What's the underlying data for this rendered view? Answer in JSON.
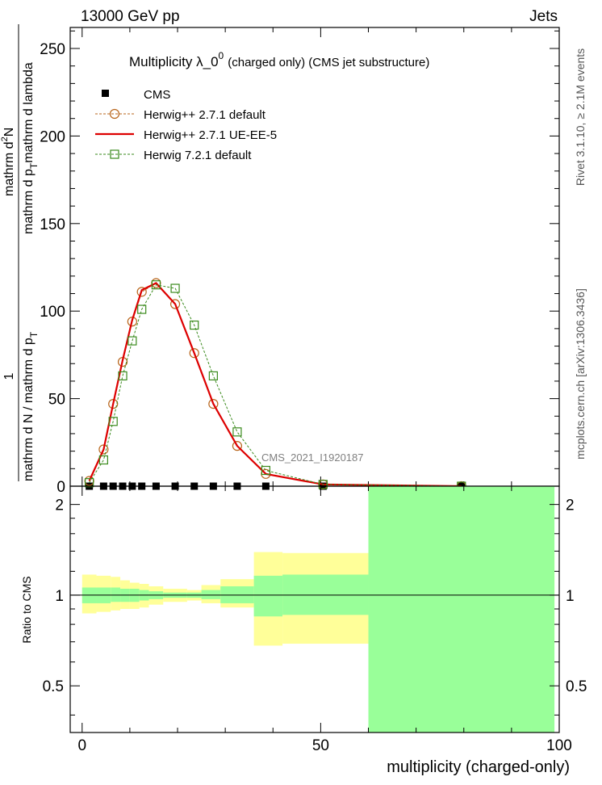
{
  "header": {
    "left": "13000 GeV pp",
    "right": "Jets"
  },
  "side_labels": {
    "rivet": "Rivet 3.1.10, ≥ 2.1M events",
    "mcplots": "mcplots.cern.ch [arXiv:1306.3436]"
  },
  "chart_data": [
    {
      "type": "line",
      "title_main": "Multiplicity  λ_0",
      "title_sup": "0",
      "title_rest": "(charged only) (CMS jet substructure)",
      "ylabel_1": "1",
      "ylabel_2": "mathrm d N / mathrm d p",
      "ylabel_2_sub": "T",
      "ylabel_3": "mathrm d",
      "ylabel_3_sup": "2",
      "ylabel_3b": "N",
      "ylabel_4": "mathrm d p",
      "ylabel_4_sub": "T",
      "ylabel_4b": "mathrm d lambda",
      "xlim": [
        -2.5,
        100
      ],
      "ylim": [
        0,
        262
      ],
      "y_ticks": [
        0,
        50,
        100,
        150,
        200,
        250
      ],
      "analysis_label": "CMS_2021_I1920187",
      "legend_position": "top-left",
      "legend": [
        {
          "key": "cms",
          "label": "CMS"
        },
        {
          "key": "h271",
          "label": "Herwig++ 2.7.1 default"
        },
        {
          "key": "ueee5",
          "label": "Herwig++ 2.7.1 UE-EE-5"
        },
        {
          "key": "h721",
          "label": "Herwig 7.2.1 default"
        }
      ],
      "series": [
        {
          "key": "cms",
          "name": "CMS",
          "color": "#000000",
          "x": [
            1.5,
            4.5,
            6.5,
            8.5,
            10.5,
            12.5,
            15.5,
            19.5,
            23.5,
            27.5,
            32.5,
            38.5,
            50.5,
            79.5
          ],
          "y": [
            0,
            0,
            0,
            0,
            0,
            0,
            0,
            0,
            0,
            0,
            0,
            0,
            0,
            0
          ]
        },
        {
          "key": "h271",
          "name": "Herwig++ 2.7.1 default",
          "color": "#b8651b",
          "x": [
            1.5,
            4.5,
            6.5,
            8.5,
            10.5,
            12.5,
            15.5,
            19.5,
            23.5,
            27.5,
            32.5,
            38.5,
            50.5,
            79.5
          ],
          "y": [
            3,
            21,
            47,
            71,
            94,
            111,
            116,
            104,
            76,
            47,
            23,
            7,
            1,
            0
          ]
        },
        {
          "key": "ueee5",
          "name": "Herwig++ 2.7.1 UE-EE-5",
          "color": "#dd0000",
          "x": [
            1.5,
            4.5,
            6.5,
            8.5,
            10.5,
            12.5,
            15.5,
            19.5,
            23.5,
            27.5,
            32.5,
            38.5,
            50.5,
            79.5
          ],
          "y": [
            3,
            21,
            47,
            72,
            95,
            112,
            116,
            104,
            76,
            47,
            23,
            7,
            1,
            0
          ]
        },
        {
          "key": "h721",
          "name": "Herwig 7.2.1 default",
          "color": "#3a8a1c",
          "x": [
            1.5,
            4.5,
            6.5,
            8.5,
            10.5,
            12.5,
            15.5,
            19.5,
            23.5,
            27.5,
            32.5,
            38.5,
            50.5,
            79.5
          ],
          "y": [
            2,
            15,
            37,
            63,
            83,
            101,
            115,
            113,
            92,
            63,
            31,
            9,
            1,
            0
          ]
        }
      ]
    },
    {
      "type": "area",
      "ylabel": "Ratio to CMS",
      "xlabel": "multiplicity (charged-only)",
      "xlim": [
        -2.5,
        100
      ],
      "ylim": [
        0.35,
        2.3
      ],
      "y_ticks": [
        0.5,
        1,
        2
      ],
      "y_tick_labels": [
        "0.5",
        "1",
        "2"
      ],
      "x_ticks": [
        0,
        50,
        100
      ],
      "reference_line": 1,
      "bands": {
        "edges": [
          0,
          3,
          6,
          8,
          10,
          12,
          14,
          17,
          22,
          25,
          29,
          36,
          42,
          60,
          99
        ],
        "yellow_lo": [
          0.87,
          0.88,
          0.89,
          0.9,
          0.9,
          0.91,
          0.93,
          0.95,
          0.96,
          0.94,
          0.91,
          0.68,
          0.69,
          0.69
        ],
        "yellow_hi": [
          1.17,
          1.16,
          1.15,
          1.12,
          1.1,
          1.09,
          1.07,
          1.05,
          1.04,
          1.08,
          1.13,
          1.39,
          1.38,
          1.38
        ],
        "green_lo": [
          0.94,
          0.94,
          0.95,
          0.95,
          0.95,
          0.96,
          0.97,
          0.98,
          0.98,
          0.97,
          0.94,
          0.85,
          0.86,
          0.35
        ],
        "green_hi": [
          1.06,
          1.06,
          1.06,
          1.05,
          1.05,
          1.04,
          1.03,
          1.02,
          1.02,
          1.04,
          1.07,
          1.16,
          1.17,
          2.3
        ],
        "yellow_color": "#ffff99",
        "green_color": "#99ff99"
      }
    }
  ]
}
